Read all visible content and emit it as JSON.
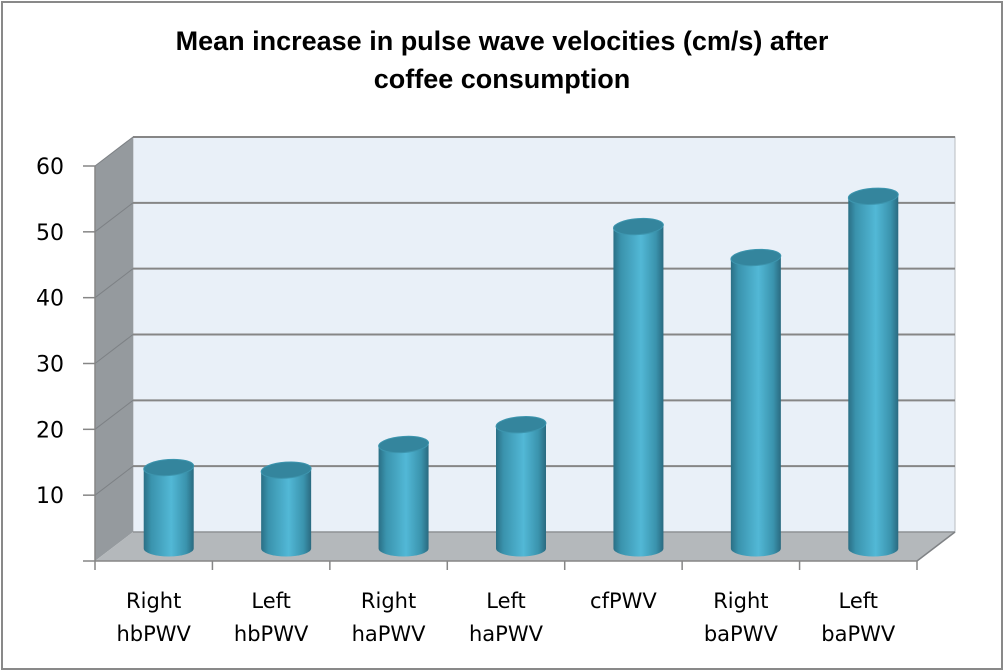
{
  "chart_data": {
    "type": "bar",
    "style": "3d-cylinder",
    "title": "Mean increase in pulse wave velocities (cm/s) after coffee consumption",
    "title_lines": [
      "Mean increase in pulse wave velocities (cm/s) after",
      "coffee consumption"
    ],
    "xlabel": "",
    "ylabel": "",
    "categories": [
      [
        "Right",
        "hbPWV"
      ],
      [
        "Left",
        "hbPWV"
      ],
      [
        "Right",
        "haPWV"
      ],
      [
        "Left",
        "haPWV"
      ],
      [
        "cfPWV"
      ],
      [
        "Right",
        "baPWV"
      ],
      [
        "Left",
        "baPWV"
      ]
    ],
    "category_names": [
      "Right hbPWV",
      "Left hbPWV",
      "Right haPWV",
      "Left haPWV",
      "cfPWV",
      "Right baPWV",
      "Left baPWV"
    ],
    "values": [
      12.3,
      11.9,
      15.8,
      18.8,
      48.9,
      44.2,
      53.5
    ],
    "ylim": [
      0,
      60
    ],
    "yticks": [
      10,
      20,
      30,
      40,
      50,
      60
    ],
    "grid": true,
    "legend": "none",
    "colors": {
      "bar": "#4bacc6",
      "bar_dark": "#2c7289",
      "bar_top": "#34859d",
      "back_wall": "#e9f0f8",
      "side_wall": "#959a9e",
      "floor": "#b4b8bb",
      "grid": "#868686"
    }
  }
}
